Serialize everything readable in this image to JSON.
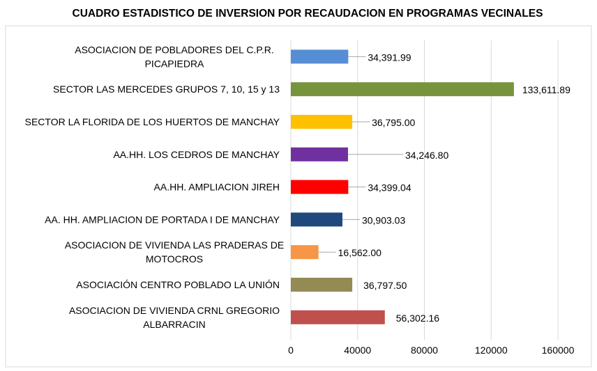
{
  "chart_data": {
    "type": "bar",
    "orientation": "horizontal",
    "title": "CUADRO ESTADISTICO DE INVERSION POR RECAUDACION EN PROGRAMAS VECINALES",
    "xlabel": "",
    "ylabel": "",
    "xlim": [
      0,
      160000
    ],
    "ticks": [
      "0",
      "40000",
      "80000",
      "120000",
      "160000"
    ],
    "tick_values": [
      0,
      40000,
      80000,
      120000,
      160000
    ],
    "grid": true,
    "legend": "none",
    "categories": [
      [
        "ASOCIACION DE POBLADORES DEL C.P.R.",
        "PICAPIEDRA"
      ],
      [
        "SECTOR LAS MERCEDES GRUPOS 7, 10, 15 y 13"
      ],
      [
        "SECTOR LA FLORIDA DE LOS HUERTOS DE MANCHAY"
      ],
      [
        "AA.HH. LOS CEDROS DE MANCHAY"
      ],
      [
        "AA.HH. AMPLIACION JIREH"
      ],
      [
        "AA. HH.  AMPLIACION DE PORTADA I DE MANCHAY"
      ],
      [
        "ASOCIACION DE VIVIENDA LAS PRADERAS DE",
        "MOTOCROS"
      ],
      [
        "ASOCIACIÓN CENTRO POBLADO LA UNIÓN"
      ],
      [
        "ASOCIACION DE VIVIENDA CRNL GREGORIO",
        "ALBARRACIN"
      ]
    ],
    "values": [
      34391.99,
      133611.89,
      36795.0,
      34246.8,
      34399.04,
      30903.03,
      16562.0,
      36797.5,
      56302.16
    ],
    "value_labels": [
      "34,391.99",
      "133,611.89",
      "36,795.00",
      "34,246.80",
      "34,399.04",
      "30,903.03",
      "16,562.00",
      "36,797.50",
      "56,302.16"
    ],
    "colors": [
      "#558ED5",
      "#77933C",
      "#FFC000",
      "#7030A0",
      "#FF0000",
      "#1F497D",
      "#F79646",
      "#948A54",
      "#C0504D"
    ]
  }
}
